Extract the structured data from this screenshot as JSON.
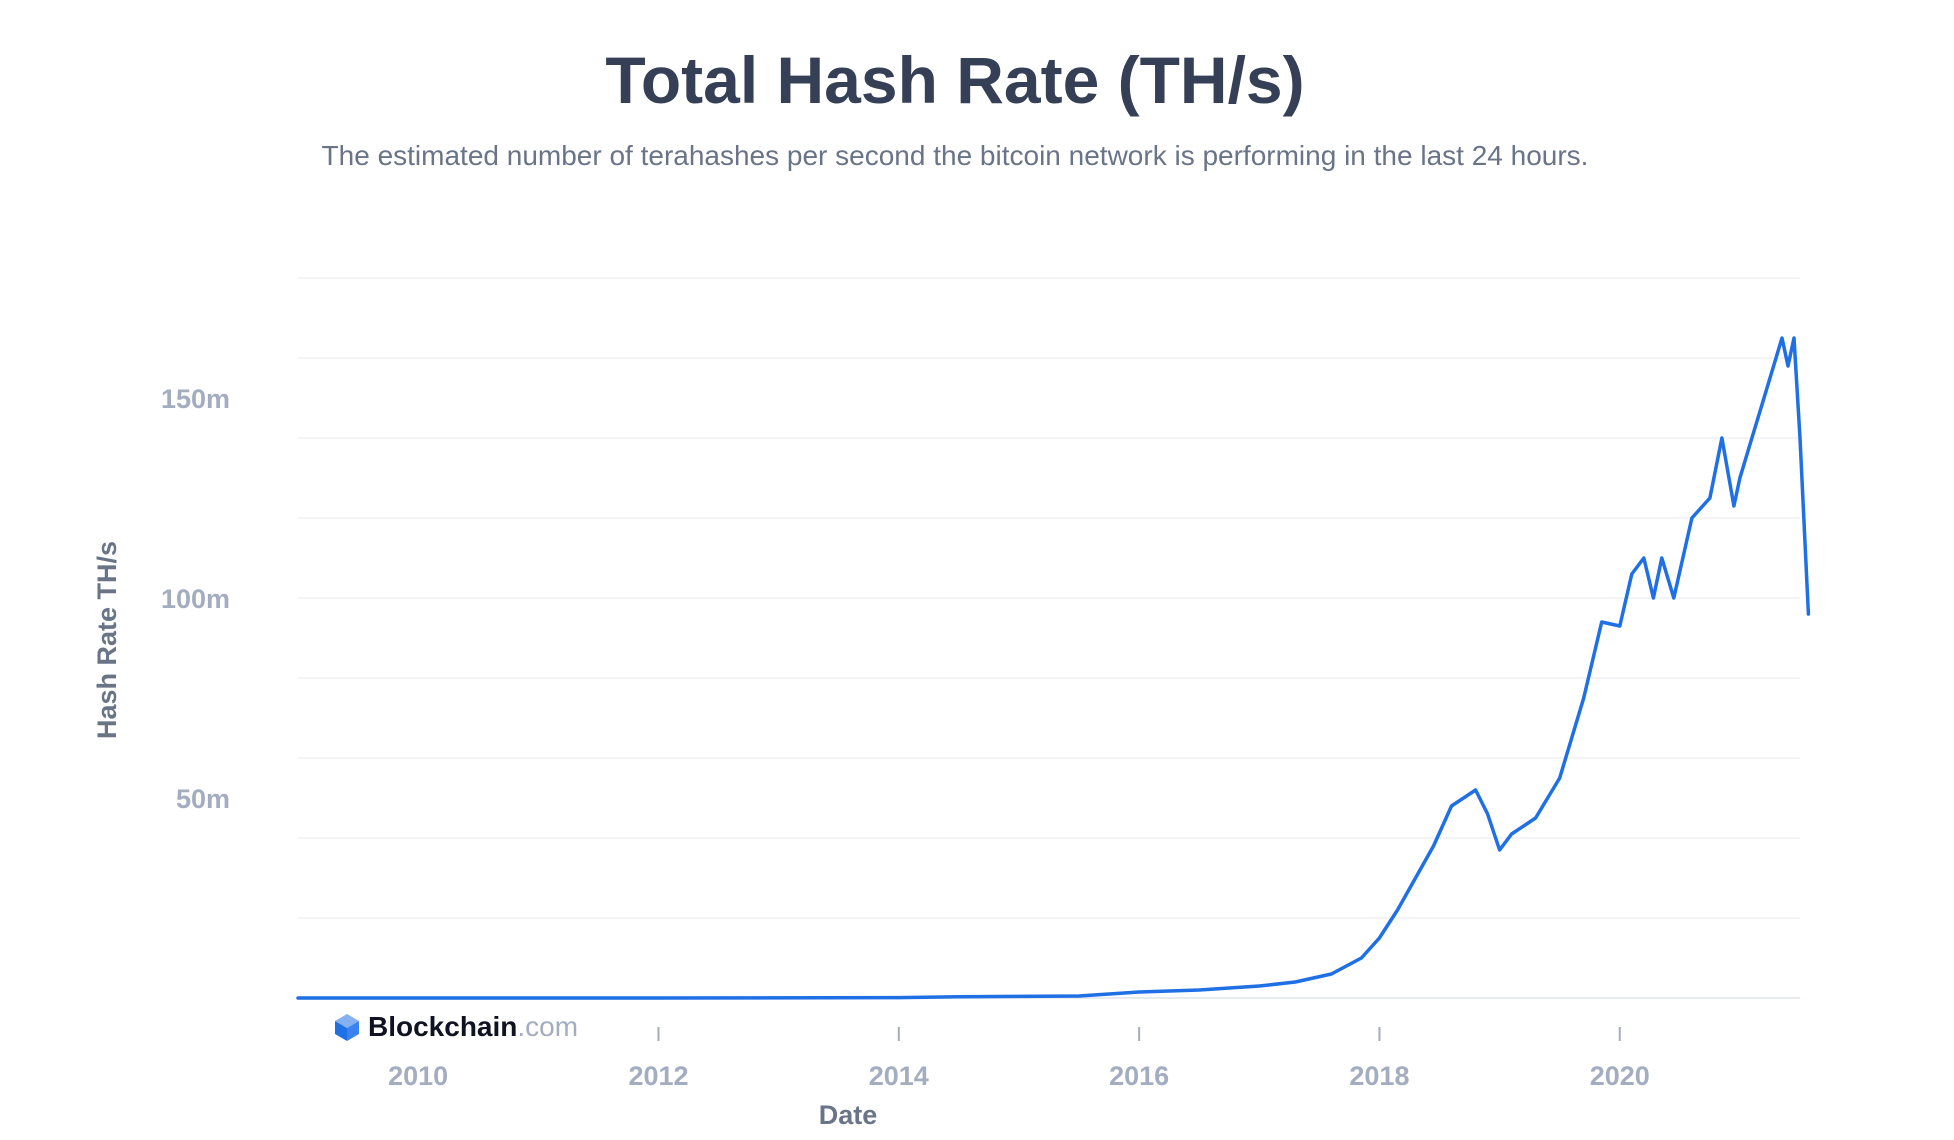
{
  "title": "Total Hash Rate (TH/s)",
  "subtitle": "The estimated number of terahashes per second the bitcoin network is performing in the last 24 hours.",
  "logo": {
    "name": "Blockchain",
    "suffix": ".com",
    "icon": "blockchain-cube-icon"
  },
  "colors": {
    "line": "#1f6fe5",
    "title": "#353f55",
    "subtitle": "#6a7487",
    "tick": "#a4acbf",
    "grid": "#e6e9ef"
  },
  "chart_data": {
    "type": "line",
    "title": "Total Hash Rate (TH/s)",
    "xlabel": "Date",
    "ylabel": "Hash Rate TH/s",
    "x_ticks": [
      "2010",
      "2012",
      "2014",
      "2016",
      "2018",
      "2020"
    ],
    "y_ticks": [
      {
        "value": 50000000,
        "label": "50m"
      },
      {
        "value": 100000000,
        "label": "100m"
      },
      {
        "value": 150000000,
        "label": "150m"
      }
    ],
    "xlim": [
      2009.0,
      2021.5
    ],
    "ylim": [
      0,
      180000000
    ],
    "grid": true,
    "legend": "none",
    "series": [
      {
        "points": [
          [
            2009.0,
            0
          ],
          [
            2012.0,
            0
          ],
          [
            2014.0,
            100000
          ],
          [
            2014.5,
            300000
          ],
          [
            2015.0,
            400000
          ],
          [
            2015.5,
            500000
          ],
          [
            2016.0,
            1500000
          ],
          [
            2016.5,
            2000000
          ],
          [
            2017.0,
            3000000
          ],
          [
            2017.3,
            4000000
          ],
          [
            2017.6,
            6000000
          ],
          [
            2017.85,
            10000000
          ],
          [
            2018.0,
            15000000
          ],
          [
            2018.15,
            22000000
          ],
          [
            2018.3,
            30000000
          ],
          [
            2018.45,
            38000000
          ],
          [
            2018.6,
            48000000
          ],
          [
            2018.8,
            52000000
          ],
          [
            2018.9,
            46000000
          ],
          [
            2019.0,
            37000000
          ],
          [
            2019.1,
            41000000
          ],
          [
            2019.3,
            45000000
          ],
          [
            2019.5,
            55000000
          ],
          [
            2019.7,
            75000000
          ],
          [
            2019.85,
            94000000
          ],
          [
            2020.0,
            93000000
          ],
          [
            2020.1,
            106000000
          ],
          [
            2020.2,
            110000000
          ],
          [
            2020.28,
            100000000
          ],
          [
            2020.35,
            110000000
          ],
          [
            2020.45,
            100000000
          ],
          [
            2020.6,
            120000000
          ],
          [
            2020.75,
            125000000
          ],
          [
            2020.85,
            140000000
          ],
          [
            2020.95,
            123000000
          ],
          [
            2021.0,
            130000000
          ],
          [
            2021.1,
            140000000
          ],
          [
            2021.2,
            150000000
          ],
          [
            2021.3,
            160000000
          ],
          [
            2021.35,
            165000000
          ],
          [
            2021.4,
            158000000
          ],
          [
            2021.45,
            165000000
          ],
          [
            2021.5,
            140000000
          ],
          [
            2021.57,
            96000000
          ]
        ]
      }
    ]
  }
}
